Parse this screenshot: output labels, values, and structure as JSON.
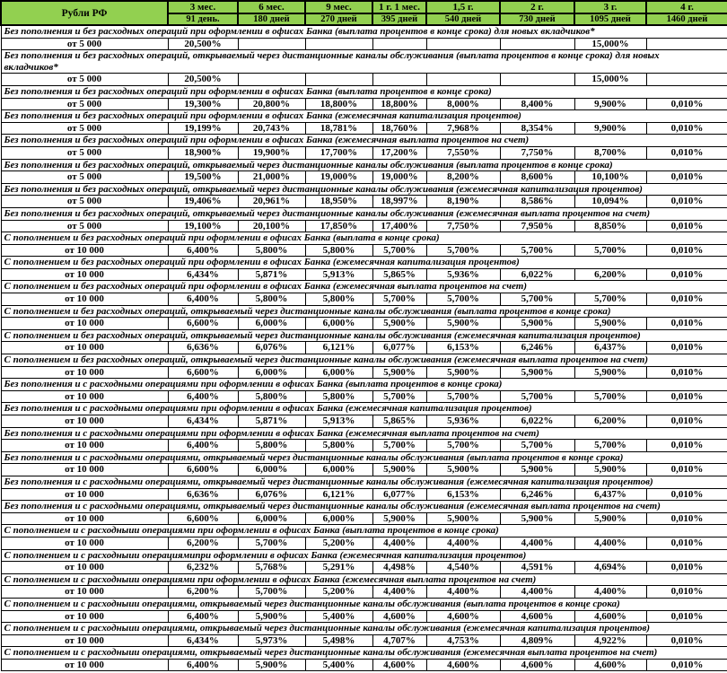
{
  "colors": {
    "header_bg": "#92D050",
    "border": "#000000",
    "text": "#000000",
    "page_bg": "#FFFFFF"
  },
  "header": {
    "corner": "Рубли РФ",
    "columns": [
      {
        "term": "3 мес.",
        "days": "91 день."
      },
      {
        "term": "6 мес.",
        "days": "180 дней"
      },
      {
        "term": "9 мес.",
        "days": "270 дней"
      },
      {
        "term": "1 г. 1 мес.",
        "days": "395 дней"
      },
      {
        "term": "1,5 г.",
        "days": "540 дней"
      },
      {
        "term": "2 г.",
        "days": "730 дней"
      },
      {
        "term": "3 г.",
        "days": "1095 дней"
      },
      {
        "term": "4 г.",
        "days": "1460 дней"
      }
    ]
  },
  "sections": [
    {
      "title": "Без пополнения и без расходных операций при оформлении в офисах Банка (выплата процентов в конце срока) для новых вкладчиков*",
      "amount": "от 5 000",
      "rates": [
        "20,500%",
        "",
        "",
        "",
        "",
        "",
        "15,000%",
        ""
      ]
    },
    {
      "title": "Без пополнения и без расходных операций, открываемый через дистанционные каналы обслуживания (выплата процентов в конце срока) для новых вкладчиков*",
      "amount": "от 5 000",
      "rates": [
        "20,500%",
        "",
        "",
        "",
        "",
        "",
        "15,000%",
        ""
      ]
    },
    {
      "title": "Без пополнения и без расходных операций при оформлении в офисах Банка (выплата процентов в конце срока)",
      "amount": "от 5 000",
      "rates": [
        "19,300%",
        "20,800%",
        "18,800%",
        "18,800%",
        "8,000%",
        "8,400%",
        "9,900%",
        "0,010%"
      ]
    },
    {
      "title": "Без пополнения и без расходных операций при оформлении в офисах Банка (ежемесячная капитализация процентов)",
      "amount": "от 5 000",
      "rates": [
        "19,199%",
        "20,743%",
        "18,781%",
        "18,760%",
        "7,968%",
        "8,354%",
        "9,900%",
        "0,010%"
      ]
    },
    {
      "title": "Без пополнения и без расходных операций при оформлении в офисах Банка (ежемесячная выплата процентов на счет)",
      "amount": "от 5 000",
      "rates": [
        "18,900%",
        "19,900%",
        "17,700%",
        "17,200%",
        "7,550%",
        "7,750%",
        "8,700%",
        "0,010%"
      ]
    },
    {
      "title": "Без пополнения и без расходных операций, открываемый через дистанционные каналы обслуживания (выплата процентов в конце срока)",
      "amount": "от 5 000",
      "rates": [
        "19,500%",
        "21,000%",
        "19,000%",
        "19,000%",
        "8,200%",
        "8,600%",
        "10,100%",
        "0,010%"
      ]
    },
    {
      "title": "Без пополнения и без расходных операций, открываемый через дистанционные каналы обслуживания (ежемесячная капитализация процентов)",
      "amount": "от 5 000",
      "rates": [
        "19,406%",
        "20,961%",
        "18,950%",
        "18,997%",
        "8,190%",
        "8,586%",
        "10,094%",
        "0,010%"
      ]
    },
    {
      "title": "Без пополнения и без расходных операций, открываемый через дистанционные каналы обслуживания (ежемесячная выплата процентов на счет)",
      "amount": "от 5 000",
      "rates": [
        "19,100%",
        "20,100%",
        "17,850%",
        "17,400%",
        "7,750%",
        "7,950%",
        "8,850%",
        "0,010%"
      ]
    },
    {
      "title": "С пополнением и без расходных операций при оформлении в офисах Банка (выплата в конце срока)",
      "amount": "от 10 000",
      "rates": [
        "6,400%",
        "5,800%",
        "5,800%",
        "5,700%",
        "5,700%",
        "5,700%",
        "5,700%",
        "0,010%"
      ]
    },
    {
      "title": "С пополнением и без расходных операций при оформлении в офисах Банка (ежемесячная капитализация процентов)",
      "amount": "от 10 000",
      "rates": [
        "6,434%",
        "5,871%",
        "5,913%",
        "5,865%",
        "5,936%",
        "6,022%",
        "6,200%",
        "0,010%"
      ]
    },
    {
      "title": "С пополнением и без расходных операций при оформлении в офисах Банка (ежемесячная выплата процентов на счет)",
      "amount": "от 10 000",
      "rates": [
        "6,400%",
        "5,800%",
        "5,800%",
        "5,700%",
        "5,700%",
        "5,700%",
        "5,700%",
        "0,010%"
      ]
    },
    {
      "title": "С пополнением и без расходных операций, открываемый через дистанционные каналы обслуживания (выплата процентов в конце срока)",
      "amount": "от 10 000",
      "rates": [
        "6,600%",
        "6,000%",
        "6,000%",
        "5,900%",
        "5,900%",
        "5,900%",
        "5,900%",
        "0,010%"
      ]
    },
    {
      "title": "С пополнением и без расходных операций, открываемый через дистанционные каналы обслуживания (ежемесячная капитализация процентов)",
      "amount": "от 10 000",
      "rates": [
        "6,636%",
        "6,076%",
        "6,121%",
        "6,077%",
        "6,153%",
        "6,246%",
        "6,437%",
        "0,010%"
      ]
    },
    {
      "title": "С пополнением и без расходных операций, открываемый через дистанционные каналы обслуживания (ежемесячная выплата процентов на счет)",
      "amount": "от 10 000",
      "rates": [
        "6,600%",
        "6,000%",
        "6,000%",
        "5,900%",
        "5,900%",
        "5,900%",
        "5,900%",
        "0,010%"
      ]
    },
    {
      "title": "Без пополнения и с расходными операциями при оформлении в офисах Банка (выплата процентов в конце срока)",
      "amount": "от 10 000",
      "rates": [
        "6,400%",
        "5,800%",
        "5,800%",
        "5,700%",
        "5,700%",
        "5,700%",
        "5,700%",
        "0,010%"
      ]
    },
    {
      "title": "Без пополнения и с расходными операциями при оформлении в офисах Банка (ежемесячная капитализация процентов)",
      "amount": "от 10 000",
      "rates": [
        "6,434%",
        "5,871%",
        "5,913%",
        "5,865%",
        "5,936%",
        "6,022%",
        "6,200%",
        "0,010%"
      ]
    },
    {
      "title": "Без пополнения и с расходными операциями при оформлении в офисах Банка (ежемесячная выплата процентов на счет)",
      "amount": "от 10 000",
      "rates": [
        "6,400%",
        "5,800%",
        "5,800%",
        "5,700%",
        "5,700%",
        "5,700%",
        "5,700%",
        "0,010%"
      ]
    },
    {
      "title": "Без пополнения и с расходными операциями, открываемый через дистанционные каналы обслуживания (выплата процентов в конце срока)",
      "amount": "от 10 000",
      "rates": [
        "6,600%",
        "6,000%",
        "6,000%",
        "5,900%",
        "5,900%",
        "5,900%",
        "5,900%",
        "0,010%"
      ]
    },
    {
      "title": "Без пополнения и с расходными операциями, открываемый через дистанционные каналы обслуживания (ежемесячная капитализация процентов)",
      "amount": "от 10 000",
      "rates": [
        "6,636%",
        "6,076%",
        "6,121%",
        "6,077%",
        "6,153%",
        "6,246%",
        "6,437%",
        "0,010%"
      ]
    },
    {
      "title": "Без пополнения и с расходными операциями, открываемый через дистанционные каналы обслуживания (ежемесячная выплата процентов на счет)",
      "amount": "от 10 000",
      "rates": [
        "6,600%",
        "6,000%",
        "6,000%",
        "5,900%",
        "5,900%",
        "5,900%",
        "5,900%",
        "0,010%"
      ]
    },
    {
      "title": "С пополнением и с расходныии операциями при оформлении в офисах Банка (выплата процентов в конце срока)",
      "amount": "от 10 000",
      "rates": [
        "6,200%",
        "5,700%",
        "5,200%",
        "4,400%",
        "4,400%",
        "4,400%",
        "4,400%",
        "0,010%"
      ]
    },
    {
      "title": "С пополнением и с расходныии операциямипри оформлении в офисах Банка (ежемесячная капитализация процентов)",
      "amount": "от 10 000",
      "rates": [
        "6,232%",
        "5,768%",
        "5,291%",
        "4,498%",
        "4,540%",
        "4,591%",
        "4,694%",
        "0,010%"
      ]
    },
    {
      "title": "С пополнением и с расходныии операциями при оформлении в офисах Банка (ежемесячная выплата процентов на счет)",
      "amount": "от 10 000",
      "rates": [
        "6,200%",
        "5,700%",
        "5,200%",
        "4,400%",
        "4,400%",
        "4,400%",
        "4,400%",
        "0,010%"
      ]
    },
    {
      "title": "С пополнением и с расходныии операциями, открываемый через дистанционные каналы обслуживания (выплата процентов в конце срока)",
      "amount": "от 10 000",
      "rates": [
        "6,400%",
        "5,900%",
        "5,400%",
        "4,600%",
        "4,600%",
        "4,600%",
        "4,600%",
        "0,010%"
      ]
    },
    {
      "title": "С пополнением и с расходныии операциями, открываемый через дистанционные каналы обслуживания (ежемесячная капитализация процентов)",
      "amount": "от 10 000",
      "rates": [
        "6,434%",
        "5,973%",
        "5,498%",
        "4,707%",
        "4,753%",
        "4,809%",
        "4,922%",
        "0,010%"
      ]
    },
    {
      "title": "С пополнением и с расходныии операциями, открываемый через дистанционные каналы обслуживания (ежемесячная выплата процентов на счет)",
      "amount": "от 10 000",
      "rates": [
        "6,400%",
        "5,900%",
        "5,400%",
        "4,600%",
        "4,600%",
        "4,600%",
        "4,600%",
        "0,010%"
      ]
    }
  ]
}
